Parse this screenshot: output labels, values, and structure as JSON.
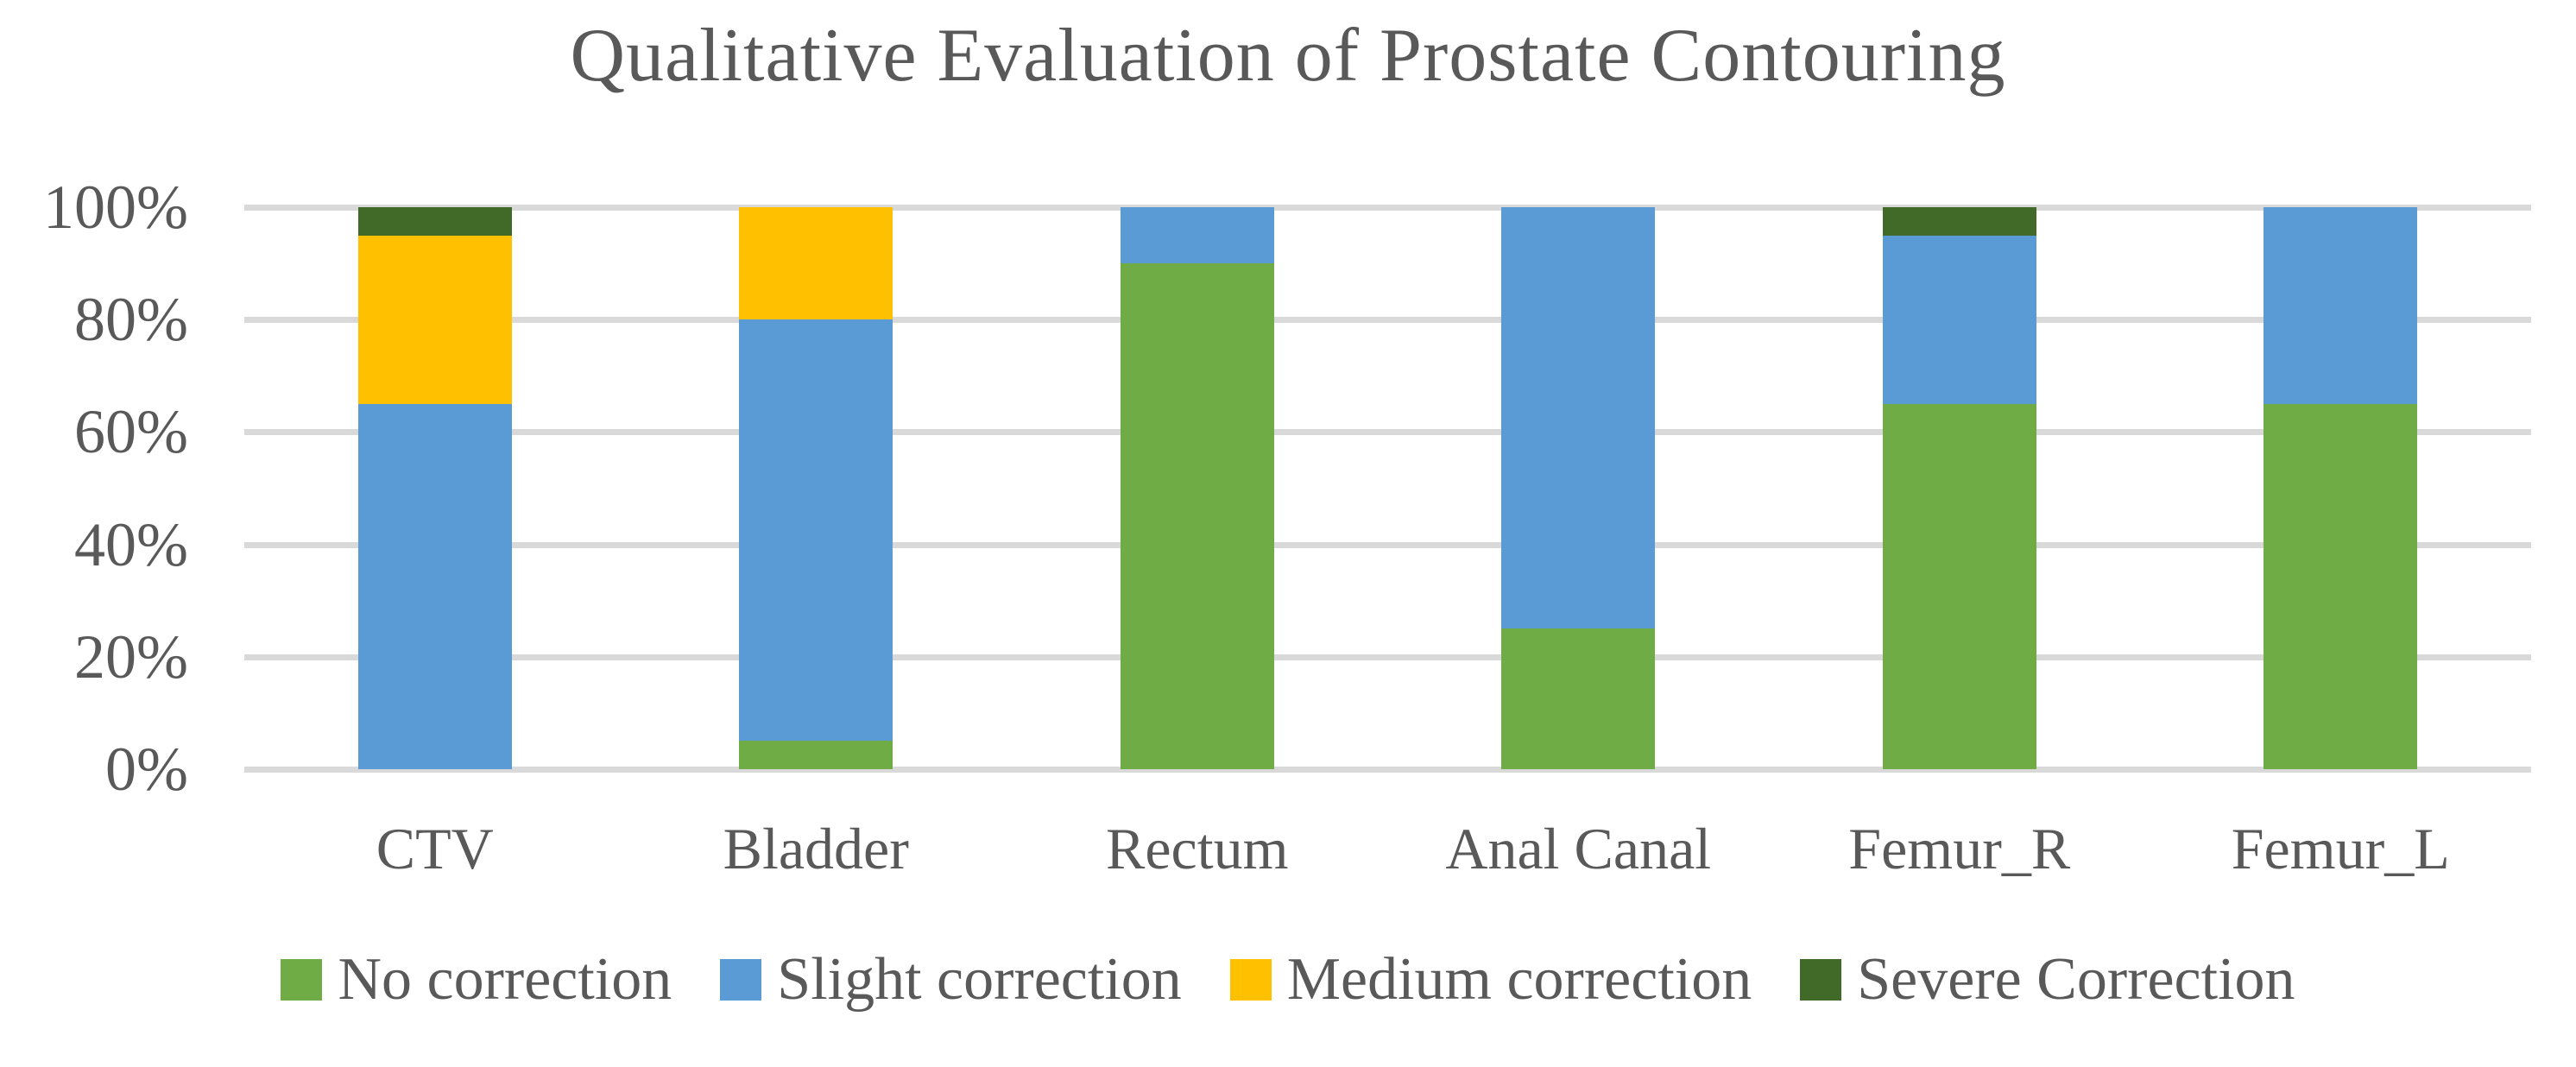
{
  "chart_data": {
    "type": "bar",
    "stacked": true,
    "orientation": "vertical",
    "title": "Qualitative Evaluation of Prostate Contouring",
    "categories": [
      "CTV",
      "Bladder",
      "Rectum",
      "Anal Canal",
      "Femur_R",
      "Femur_L"
    ],
    "series": [
      {
        "name": "No correction",
        "color": "#6FAC46",
        "values": [
          0,
          5,
          90,
          25,
          65,
          65
        ]
      },
      {
        "name": "Slight correction",
        "color": "#5A9AD5",
        "values": [
          65,
          75,
          10,
          75,
          30,
          35
        ]
      },
      {
        "name": "Medium correction",
        "color": "#FFC000",
        "values": [
          30,
          20,
          0,
          0,
          0,
          0
        ]
      },
      {
        "name": "Severe Correction",
        "color": "#416A29",
        "values": [
          5,
          0,
          0,
          0,
          5,
          0
        ]
      }
    ],
    "value_unit": "%",
    "ylim": [
      0,
      100
    ],
    "y_ticks": [
      "0%",
      "20%",
      "40%",
      "60%",
      "80%",
      "100%"
    ],
    "y_tick_values": [
      0,
      20,
      40,
      60,
      80,
      100
    ],
    "grid": true,
    "gridline_color": "#D9D9D9",
    "text_color": "#595959",
    "legend_position": "bottom"
  }
}
